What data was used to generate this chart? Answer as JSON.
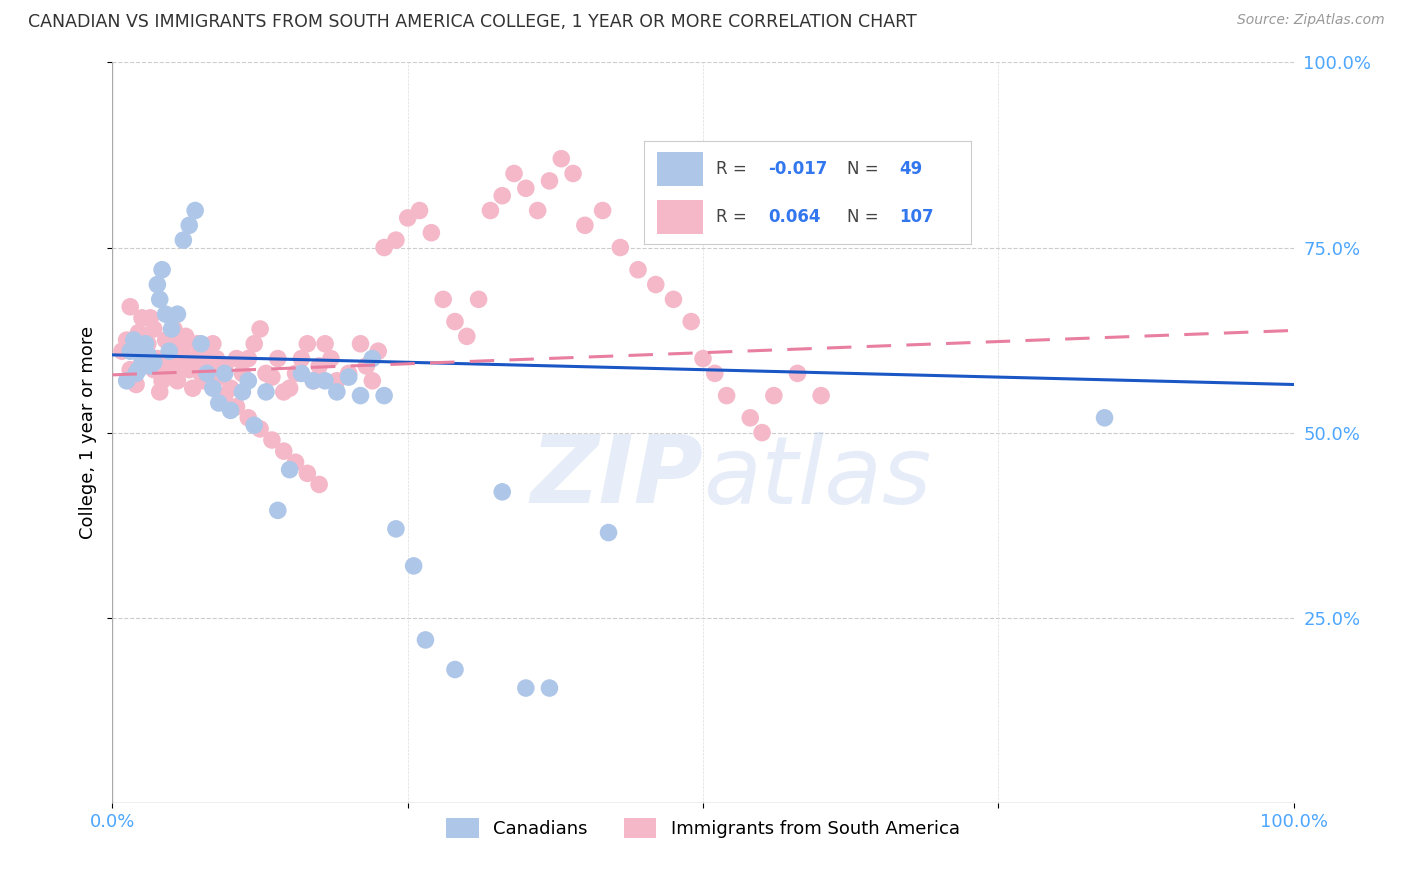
{
  "title": "CANADIAN VS IMMIGRANTS FROM SOUTH AMERICA COLLEGE, 1 YEAR OR MORE CORRELATION CHART",
  "source": "Source: ZipAtlas.com",
  "ylabel": "College, 1 year or more",
  "xlim": [
    0,
    1.0
  ],
  "ylim": [
    0,
    1.0
  ],
  "canadian_color": "#aec6e8",
  "immigrant_color": "#f4b8c8",
  "canadian_line_color": "#1a56c4",
  "immigrant_line_color": "#e87fa0",
  "tick_color": "#4da6ff",
  "R_canadian": -0.017,
  "N_canadian": 49,
  "R_immigrant": 0.064,
  "N_immigrant": 107,
  "canadians_label": "Canadians",
  "immigrants_label": "Immigrants from South America",
  "watermark": "ZIPatlas",
  "canadian_line_y0": 0.605,
  "canadian_line_y1": 0.565,
  "immigrant_line_y0": 0.578,
  "immigrant_line_y1": 0.638,
  "canadians_x": [
    0.025,
    0.028,
    0.032,
    0.015,
    0.02,
    0.03,
    0.035,
    0.022,
    0.018,
    0.012,
    0.04,
    0.045,
    0.05,
    0.055,
    0.038,
    0.042,
    0.048,
    0.06,
    0.065,
    0.07,
    0.08,
    0.085,
    0.09,
    0.075,
    0.095,
    0.1,
    0.11,
    0.115,
    0.12,
    0.13,
    0.14,
    0.15,
    0.16,
    0.17,
    0.18,
    0.19,
    0.2,
    0.21,
    0.22,
    0.23,
    0.24,
    0.255,
    0.265,
    0.29,
    0.33,
    0.35,
    0.37,
    0.42,
    0.84
  ],
  "canadians_y": [
    0.6,
    0.62,
    0.59,
    0.61,
    0.58,
    0.605,
    0.595,
    0.585,
    0.625,
    0.57,
    0.68,
    0.66,
    0.64,
    0.66,
    0.7,
    0.72,
    0.61,
    0.76,
    0.78,
    0.8,
    0.58,
    0.56,
    0.54,
    0.62,
    0.58,
    0.53,
    0.555,
    0.57,
    0.51,
    0.555,
    0.395,
    0.45,
    0.58,
    0.57,
    0.57,
    0.555,
    0.575,
    0.55,
    0.6,
    0.55,
    0.37,
    0.32,
    0.22,
    0.18,
    0.42,
    0.155,
    0.155,
    0.365,
    0.52
  ],
  "immigrants_x": [
    0.008,
    0.012,
    0.015,
    0.018,
    0.02,
    0.022,
    0.025,
    0.028,
    0.03,
    0.032,
    0.035,
    0.038,
    0.04,
    0.042,
    0.045,
    0.048,
    0.05,
    0.052,
    0.055,
    0.058,
    0.06,
    0.062,
    0.065,
    0.068,
    0.07,
    0.072,
    0.075,
    0.078,
    0.08,
    0.082,
    0.085,
    0.088,
    0.09,
    0.095,
    0.1,
    0.105,
    0.11,
    0.115,
    0.12,
    0.125,
    0.13,
    0.135,
    0.14,
    0.145,
    0.15,
    0.155,
    0.16,
    0.165,
    0.17,
    0.175,
    0.18,
    0.185,
    0.19,
    0.2,
    0.21,
    0.215,
    0.22,
    0.225,
    0.23,
    0.24,
    0.25,
    0.26,
    0.27,
    0.28,
    0.29,
    0.3,
    0.31,
    0.32,
    0.33,
    0.34,
    0.35,
    0.36,
    0.37,
    0.38,
    0.39,
    0.4,
    0.415,
    0.43,
    0.445,
    0.46,
    0.475,
    0.49,
    0.5,
    0.51,
    0.52,
    0.54,
    0.55,
    0.56,
    0.58,
    0.6,
    0.015,
    0.025,
    0.035,
    0.045,
    0.055,
    0.065,
    0.075,
    0.085,
    0.095,
    0.105,
    0.115,
    0.125,
    0.135,
    0.145,
    0.155,
    0.165,
    0.175
  ],
  "immigrants_y": [
    0.61,
    0.625,
    0.585,
    0.575,
    0.565,
    0.635,
    0.595,
    0.605,
    0.62,
    0.655,
    0.585,
    0.6,
    0.555,
    0.57,
    0.585,
    0.6,
    0.625,
    0.64,
    0.57,
    0.59,
    0.615,
    0.63,
    0.585,
    0.56,
    0.6,
    0.62,
    0.595,
    0.57,
    0.6,
    0.58,
    0.62,
    0.6,
    0.575,
    0.59,
    0.56,
    0.6,
    0.58,
    0.6,
    0.62,
    0.64,
    0.58,
    0.575,
    0.6,
    0.555,
    0.56,
    0.58,
    0.6,
    0.62,
    0.57,
    0.59,
    0.62,
    0.6,
    0.57,
    0.58,
    0.62,
    0.59,
    0.57,
    0.61,
    0.75,
    0.76,
    0.79,
    0.8,
    0.77,
    0.68,
    0.65,
    0.63,
    0.68,
    0.8,
    0.82,
    0.85,
    0.83,
    0.8,
    0.84,
    0.87,
    0.85,
    0.78,
    0.8,
    0.75,
    0.72,
    0.7,
    0.68,
    0.65,
    0.6,
    0.58,
    0.55,
    0.52,
    0.5,
    0.55,
    0.58,
    0.55,
    0.67,
    0.655,
    0.64,
    0.625,
    0.61,
    0.595,
    0.58,
    0.565,
    0.55,
    0.535,
    0.52,
    0.505,
    0.49,
    0.475,
    0.46,
    0.445,
    0.43
  ]
}
